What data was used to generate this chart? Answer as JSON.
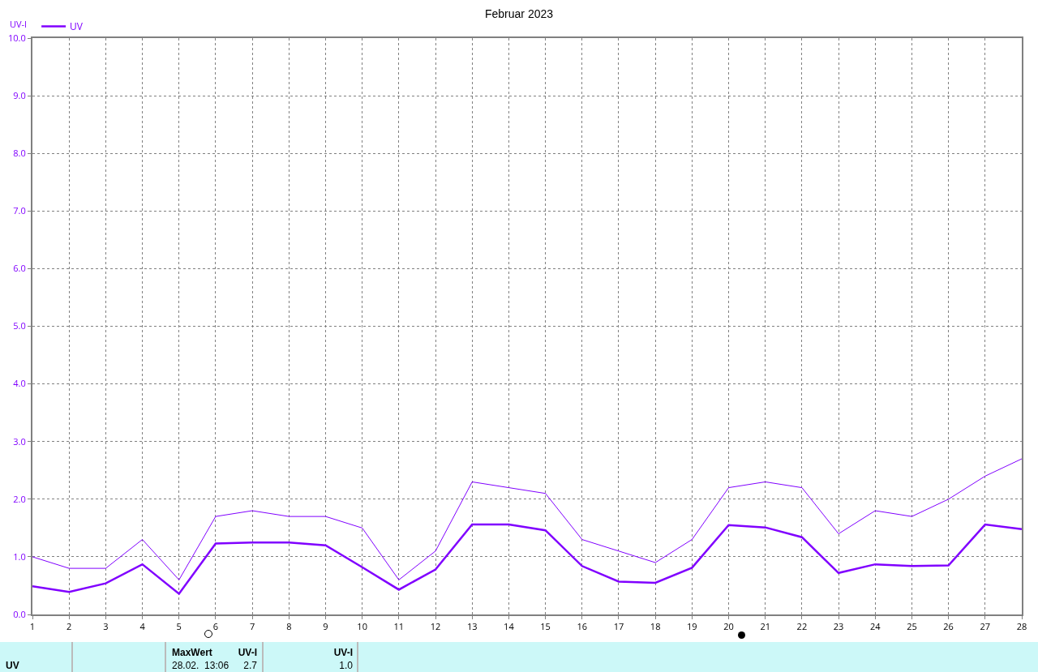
{
  "chart_data": {
    "type": "line",
    "title": "Februar 2023",
    "ylabel": "UV-I",
    "x": [
      1,
      2,
      3,
      4,
      5,
      6,
      7,
      8,
      9,
      10,
      11,
      12,
      13,
      14,
      15,
      16,
      17,
      18,
      19,
      20,
      21,
      22,
      23,
      24,
      25,
      26,
      27,
      28
    ],
    "series": [
      {
        "color": "#8000ff",
        "values": [
          1.0,
          0.8,
          0.8,
          1.3,
          0.6,
          1.7,
          1.8,
          1.7,
          1.7,
          1.5,
          0.6,
          1.1,
          2.3,
          2.2,
          2.1,
          1.3,
          1.1,
          0.9,
          1.3,
          2.2,
          2.3,
          2.2,
          1.4,
          1.8,
          1.7,
          2.0,
          2.4,
          2.7
        ]
      },
      {
        "name": "UV",
        "color": "#8000ff",
        "values": [
          0.49,
          0.39,
          0.54,
          0.87,
          0.36,
          1.23,
          1.25,
          1.25,
          1.2,
          0.82,
          0.43,
          0.78,
          1.56,
          1.56,
          1.46,
          0.84,
          0.57,
          0.55,
          0.81,
          1.55,
          1.51,
          1.34,
          0.72,
          0.87,
          0.84,
          0.85,
          1.56,
          1.48
        ]
      }
    ],
    "xlim": [
      1,
      28
    ],
    "xticks": [
      1,
      2,
      3,
      4,
      5,
      6,
      7,
      8,
      9,
      10,
      11,
      12,
      13,
      14,
      15,
      16,
      17,
      18,
      19,
      20,
      21,
      22,
      23,
      24,
      25,
      26,
      27,
      28
    ],
    "ylim": [
      0,
      10
    ],
    "yticks": [
      {
        "value": 0,
        "label": "0.0"
      },
      {
        "value": 1,
        "label": "1.0"
      },
      {
        "value": 2,
        "label": "2.0"
      },
      {
        "value": 3,
        "label": "3.0"
      },
      {
        "value": 4,
        "label": "4.0"
      },
      {
        "value": 5,
        "label": "5.0"
      },
      {
        "value": 6,
        "label": "6.0"
      },
      {
        "value": 7,
        "label": "7.0"
      },
      {
        "value": 8,
        "label": "8.0"
      },
      {
        "value": 9,
        "label": "9.0"
      },
      {
        "value": 10,
        "label": "10.0"
      }
    ],
    "grid": true,
    "legend": "top left",
    "marker": "none",
    "line_style": "solid",
    "annotations": [
      "UV",
      "MaxWert",
      "UV-I",
      "28.02.  13:06",
      "2.7",
      "UV-I",
      "1.0"
    ]
  }
}
